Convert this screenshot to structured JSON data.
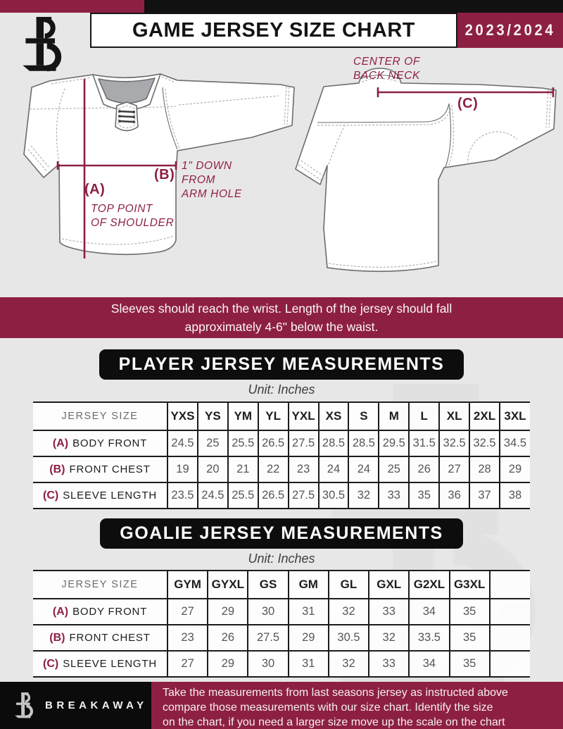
{
  "header": {
    "title": "GAME JERSEY SIZE CHART",
    "season": "2023/2024"
  },
  "diagram": {
    "front_label_a": "(A)",
    "front_note_a": "TOP POINT\nOF SHOULDER",
    "front_label_b": "(B)",
    "front_note_b": "1\" DOWN\nFROM\nARM HOLE",
    "back_note_c": "CENTER OF\nBACK NECK",
    "back_label_c": "(C)"
  },
  "banner": {
    "line1": "Sleeves should reach the wrist. Length of the jersey should fall",
    "line2": "approximately 4-6\" below the waist."
  },
  "player_section": {
    "title": "PLAYER JERSEY MEASUREMENTS",
    "unit": "Unit: Inches",
    "table": {
      "size_header": "JERSEY SIZE",
      "sizes": [
        "YXS",
        "YS",
        "YM",
        "YL",
        "YXL",
        "XS",
        "S",
        "M",
        "L",
        "XL",
        "2XL",
        "3XL"
      ],
      "rows": [
        {
          "key": "(A)",
          "label": "BODY FRONT",
          "values": [
            "24.5",
            "25",
            "25.5",
            "26.5",
            "27.5",
            "28.5",
            "28.5",
            "29.5",
            "31.5",
            "32.5",
            "32.5",
            "34.5"
          ]
        },
        {
          "key": "(B)",
          "label": "FRONT CHEST",
          "values": [
            "19",
            "20",
            "21",
            "22",
            "23",
            "24",
            "24",
            "25",
            "26",
            "27",
            "28",
            "29"
          ]
        },
        {
          "key": "(C)",
          "label": "SLEEVE LENGTH",
          "values": [
            "23.5",
            "24.5",
            "25.5",
            "26.5",
            "27.5",
            "30.5",
            "32",
            "33",
            "35",
            "36",
            "37",
            "38"
          ]
        }
      ]
    }
  },
  "goalie_section": {
    "title": "GOALIE JERSEY MEASUREMENTS",
    "unit": "Unit: Inches",
    "table": {
      "size_header": "JERSEY SIZE",
      "sizes": [
        "GYM",
        "GYXL",
        "GS",
        "GM",
        "GL",
        "GXL",
        "G2XL",
        "G3XL",
        ""
      ],
      "rows": [
        {
          "key": "(A)",
          "label": "BODY FRONT",
          "values": [
            "27",
            "29",
            "30",
            "31",
            "32",
            "33",
            "34",
            "35",
            ""
          ]
        },
        {
          "key": "(B)",
          "label": "FRONT CHEST",
          "values": [
            "23",
            "26",
            "27.5",
            "29",
            "30.5",
            "32",
            "33.5",
            "35",
            ""
          ]
        },
        {
          "key": "(C)",
          "label": "SLEEVE LENGTH",
          "values": [
            "27",
            "29",
            "30",
            "31",
            "32",
            "33",
            "34",
            "35",
            ""
          ]
        }
      ]
    }
  },
  "footer": {
    "brand": "BREAKAWAY",
    "text": "Take the measurements from last seasons jersey as instructed above\ncompare those measurements  with our size chart. Identify the size\non the chart, if you need a larger size move up the scale on the chart"
  }
}
